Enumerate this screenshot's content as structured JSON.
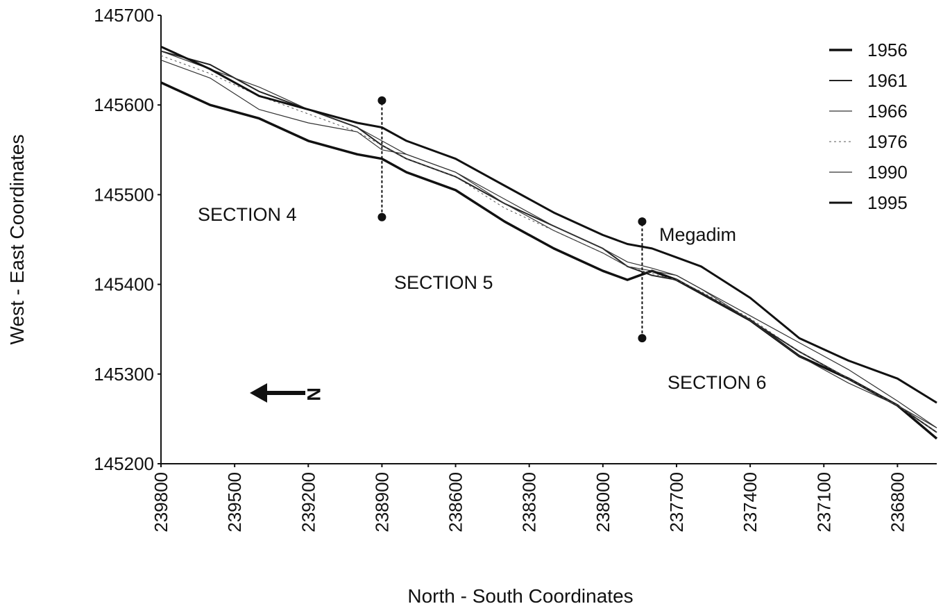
{
  "chart_data": {
    "type": "line",
    "xlabel": "North - South Coordinates",
    "ylabel": "West - East Coordinates",
    "xlim": [
      239800,
      236640
    ],
    "ylim": [
      145200,
      145700
    ],
    "xticks": [
      239800,
      239500,
      239200,
      238900,
      238600,
      238300,
      238000,
      237700,
      237400,
      237100,
      236800
    ],
    "yticks": [
      145200,
      145300,
      145400,
      145500,
      145600,
      145700
    ],
    "x": [
      239800,
      239600,
      239400,
      239200,
      239000,
      238900,
      238800,
      238600,
      238400,
      238200,
      238000,
      237900,
      237800,
      237700,
      237600,
      237400,
      237200,
      237000,
      236800,
      236640
    ],
    "series": [
      {
        "name": "1956",
        "color": "#111111",
        "width": 3.5,
        "values": [
          145625,
          145600,
          145585,
          145560,
          145545,
          145540,
          145525,
          145505,
          145470,
          145440,
          145415,
          145405,
          145415,
          145405,
          145390,
          145360,
          145320,
          145295,
          145265,
          145228
        ]
      },
      {
        "name": "1961",
        "color": "#222222",
        "width": 2,
        "values": [
          145660,
          145645,
          145615,
          145595,
          145575,
          145555,
          145540,
          145520,
          145490,
          145465,
          145440,
          145420,
          145410,
          145405,
          145390,
          145360,
          145325,
          145295,
          145265,
          145235
        ]
      },
      {
        "name": "1966",
        "color": "#333333",
        "width": 1.2,
        "values": [
          145650,
          145630,
          145595,
          145580,
          145570,
          145550,
          145545,
          145525,
          145490,
          145460,
          145435,
          145420,
          145415,
          145410,
          145395,
          145360,
          145320,
          145290,
          145265,
          145240
        ]
      },
      {
        "name": "1976",
        "color": "#555555",
        "width": 1,
        "dash": true,
        "values": [
          145655,
          145635,
          145610,
          145590,
          145570,
          145555,
          145540,
          145520,
          145485,
          145460,
          145435,
          145420,
          145412,
          145405,
          145392,
          145362,
          145325,
          145295,
          145265,
          145235
        ]
      },
      {
        "name": "1990",
        "color": "#333333",
        "width": 1.2,
        "values": [
          145660,
          145640,
          145620,
          145595,
          145575,
          145560,
          145545,
          145525,
          145495,
          145465,
          145440,
          145425,
          145418,
          145410,
          145395,
          145365,
          145335,
          145305,
          145270,
          145240
        ]
      },
      {
        "name": "1995",
        "color": "#111111",
        "width": 3,
        "values": [
          145665,
          145640,
          145610,
          145595,
          145580,
          145575,
          145560,
          145540,
          145510,
          145480,
          145455,
          145445,
          145440,
          145430,
          145420,
          145385,
          145340,
          145315,
          145295,
          145268
        ]
      }
    ],
    "markers": [
      {
        "x": 238900,
        "y1": 145475,
        "y2": 145605
      },
      {
        "x": 237840,
        "y1": 145340,
        "y2": 145470
      }
    ],
    "annotations": [
      "SECTION  4",
      "SECTION  5",
      "SECTION  6",
      "Megadim",
      "N"
    ],
    "legend": "upper right"
  }
}
